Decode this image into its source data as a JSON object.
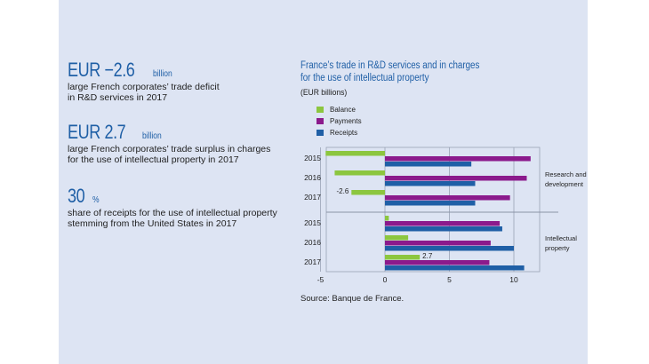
{
  "key_figures": [
    {
      "value": "EUR −2.6",
      "unit": "billion",
      "desc_lines": [
        "large French corporates’ trade deficit",
        "in R&D services in 2017"
      ]
    },
    {
      "value": "EUR 2.7",
      "unit": "billion",
      "desc_lines": [
        "large French corporates’ trade surplus in charges",
        "for the use of intellectual property in 2017"
      ]
    },
    {
      "value": "30",
      "unit": "%",
      "desc_lines": [
        "share of receipts for the use of intellectual property",
        "stemming from the United States in 2017"
      ]
    }
  ],
  "chart_title_lines": [
    "France’s trade in R&D services and in charges",
    "for the use of intellectual property"
  ],
  "chart_subtitle": "(EUR billions)",
  "source": "Source: Banque de France.",
  "colors": {
    "Balance": "#8cc63f",
    "Payments": "#8b1a8c",
    "Receipts": "#1f5fa6"
  },
  "chart_data": {
    "type": "bar",
    "orientation": "horizontal",
    "xlim": [
      -5,
      12
    ],
    "x_ticks": [
      -5,
      0,
      5,
      10
    ],
    "series_order": [
      "Balance",
      "Payments",
      "Receipts"
    ],
    "groups": [
      {
        "name_lines": [
          "Research and",
          "development"
        ],
        "rows": [
          {
            "year": "2015",
            "Balance": -4.6,
            "Payments": 11.3,
            "Receipts": 6.7
          },
          {
            "year": "2016",
            "Balance": -3.9,
            "Payments": 11.0,
            "Receipts": 7.0
          },
          {
            "year": "2017",
            "Balance": -2.6,
            "Payments": 9.7,
            "Receipts": 7.0
          }
        ]
      },
      {
        "name_lines": [
          "Intellectual",
          "property"
        ],
        "rows": [
          {
            "year": "2015",
            "Balance": 0.3,
            "Payments": 8.9,
            "Receipts": 9.1
          },
          {
            "year": "2016",
            "Balance": 1.8,
            "Payments": 8.2,
            "Receipts": 10.0
          },
          {
            "year": "2017",
            "Balance": 2.7,
            "Payments": 8.1,
            "Receipts": 10.8
          }
        ]
      }
    ],
    "annotations": [
      {
        "group": 0,
        "year": "2017",
        "series": "Balance",
        "text": "-2.6"
      },
      {
        "group": 1,
        "year": "2017",
        "series": "Balance",
        "text": "2.7"
      }
    ]
  }
}
